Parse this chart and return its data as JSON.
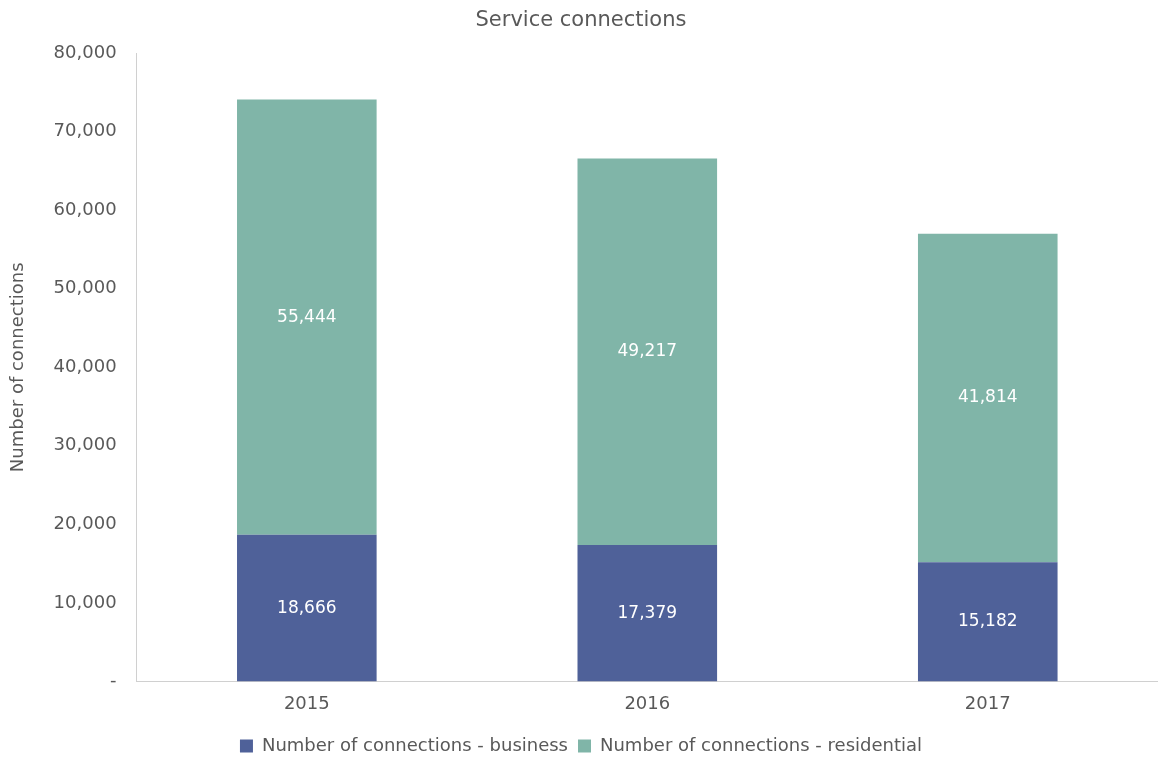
{
  "chart_data": {
    "type": "bar",
    "title": "Service connections",
    "ylabel": "Number of connections",
    "categories": [
      "2015",
      "2016",
      "2017"
    ],
    "stacked": true,
    "series": [
      {
        "name": "Number of connections - business",
        "color": "#4f6199",
        "values": [
          18666,
          17379,
          15182
        ],
        "value_labels": [
          "18,666",
          "17,379",
          "15,182"
        ]
      },
      {
        "name": "Number of connections - residential",
        "color": "#80b5a8",
        "values": [
          55444,
          49217,
          41814
        ],
        "value_labels": [
          "55,444",
          "49,217",
          "41,814"
        ]
      }
    ],
    "ylim": [
      0,
      80000
    ],
    "yticks": [
      {
        "value": 0,
        "label": "-"
      },
      {
        "value": 10000,
        "label": "10,000"
      },
      {
        "value": 20000,
        "label": "20,000"
      },
      {
        "value": 30000,
        "label": "30,000"
      },
      {
        "value": 40000,
        "label": "40,000"
      },
      {
        "value": 50000,
        "label": "50,000"
      },
      {
        "value": 60000,
        "label": "60,000"
      },
      {
        "value": 70000,
        "label": "70,000"
      },
      {
        "value": 80000,
        "label": "80,000"
      }
    ],
    "grid": false,
    "legend": "bottom"
  }
}
